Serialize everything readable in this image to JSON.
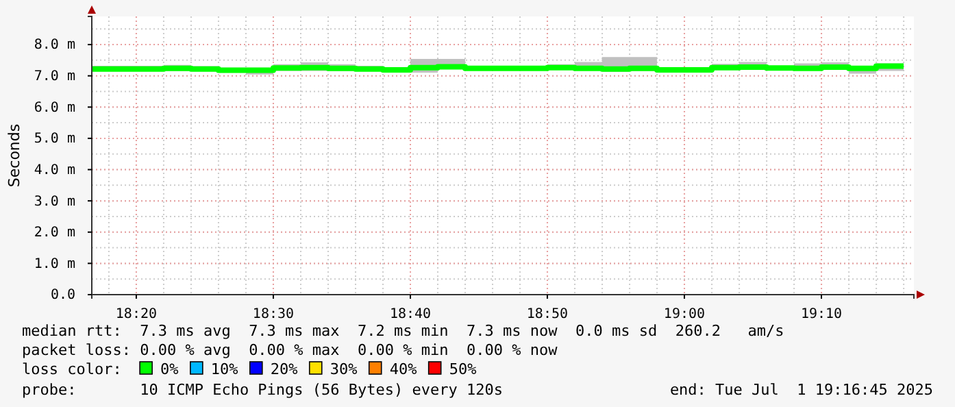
{
  "chart_data": {
    "type": "step",
    "ylabel": "Seconds",
    "x": [
      18.2792,
      18.3,
      18.3333,
      18.3667,
      18.4,
      18.4333,
      18.4667,
      18.5,
      18.5333,
      18.5667,
      18.6,
      18.6333,
      18.6667,
      18.7,
      18.7333,
      18.7667,
      18.8,
      18.8333,
      18.8667,
      18.9,
      18.9333,
      18.9667,
      19.0,
      19.0333,
      19.0667,
      19.1,
      19.1333,
      19.1667,
      19.2,
      19.2333,
      19.2667
    ],
    "series": [
      {
        "color": "#00ff00",
        "values": [
          7.22,
          7.22,
          7.22,
          7.24,
          7.22,
          7.18,
          7.18,
          7.25,
          7.26,
          7.24,
          7.22,
          7.19,
          7.26,
          7.29,
          7.24,
          7.24,
          7.24,
          7.26,
          7.24,
          7.22,
          7.24,
          7.19,
          7.19,
          7.26,
          7.28,
          7.25,
          7.24,
          7.28,
          7.24,
          7.31,
          7.31
        ],
        "upper": [
          7.32,
          7.32,
          7.32,
          7.35,
          7.31,
          7.26,
          7.26,
          7.37,
          7.43,
          7.37,
          7.32,
          7.28,
          7.54,
          7.54,
          7.29,
          7.29,
          7.32,
          7.37,
          7.44,
          7.6,
          7.6,
          7.28,
          7.28,
          7.38,
          7.44,
          7.32,
          7.4,
          7.43,
          7.32,
          7.4,
          7.4
        ],
        "lower": [
          7.16,
          7.16,
          7.16,
          7.16,
          7.16,
          7.1,
          7.04,
          7.16,
          7.16,
          7.16,
          7.16,
          7.13,
          7.1,
          7.21,
          7.19,
          7.19,
          7.18,
          7.19,
          7.18,
          7.13,
          7.16,
          7.12,
          7.12,
          7.19,
          7.19,
          7.18,
          7.18,
          7.19,
          7.07,
          7.16,
          7.16
        ]
      }
    ],
    "xlim": [
      18.2792,
      19.2792
    ],
    "xticks": [
      {
        "value": 18.3333,
        "label": "18:20"
      },
      {
        "value": 18.5,
        "label": "18:30"
      },
      {
        "value": 18.6667,
        "label": "18:40"
      },
      {
        "value": 18.8333,
        "label": "18:50"
      },
      {
        "value": 19.0,
        "label": "19:00"
      },
      {
        "value": 19.1667,
        "label": "19:10"
      }
    ],
    "ylim": [
      0,
      8.9
    ],
    "yticks": [
      {
        "value": 0,
        "label": "0.0"
      },
      {
        "value": 1,
        "label": "1.0 m"
      },
      {
        "value": 2,
        "label": "2.0 m"
      },
      {
        "value": 3,
        "label": "3.0 m"
      },
      {
        "value": 4,
        "label": "4.0 m"
      },
      {
        "value": 5,
        "label": "5.0 m"
      },
      {
        "value": 6,
        "label": "6.0 m"
      },
      {
        "value": 7,
        "label": "7.0 m"
      },
      {
        "value": 8,
        "label": "8.0 m"
      }
    ],
    "grid": true,
    "annotations": [
      "median rtt:  7.3 ms avg  7.3 ms max  7.2 ms min  7.3 ms now  0.0 ms sd  260.2   am/s",
      "packet loss: 0.00 % avg  0.00 % max  0.00 % min  0.00 % now",
      "loss color:",
      "0%",
      "10%",
      "20%",
      "30%",
      "40%",
      "50%",
      "probe:       10 ICMP Echo Pings (56 Bytes) every 120s",
      "end: Tue Jul  1 19:16:45 2025"
    ]
  }
}
